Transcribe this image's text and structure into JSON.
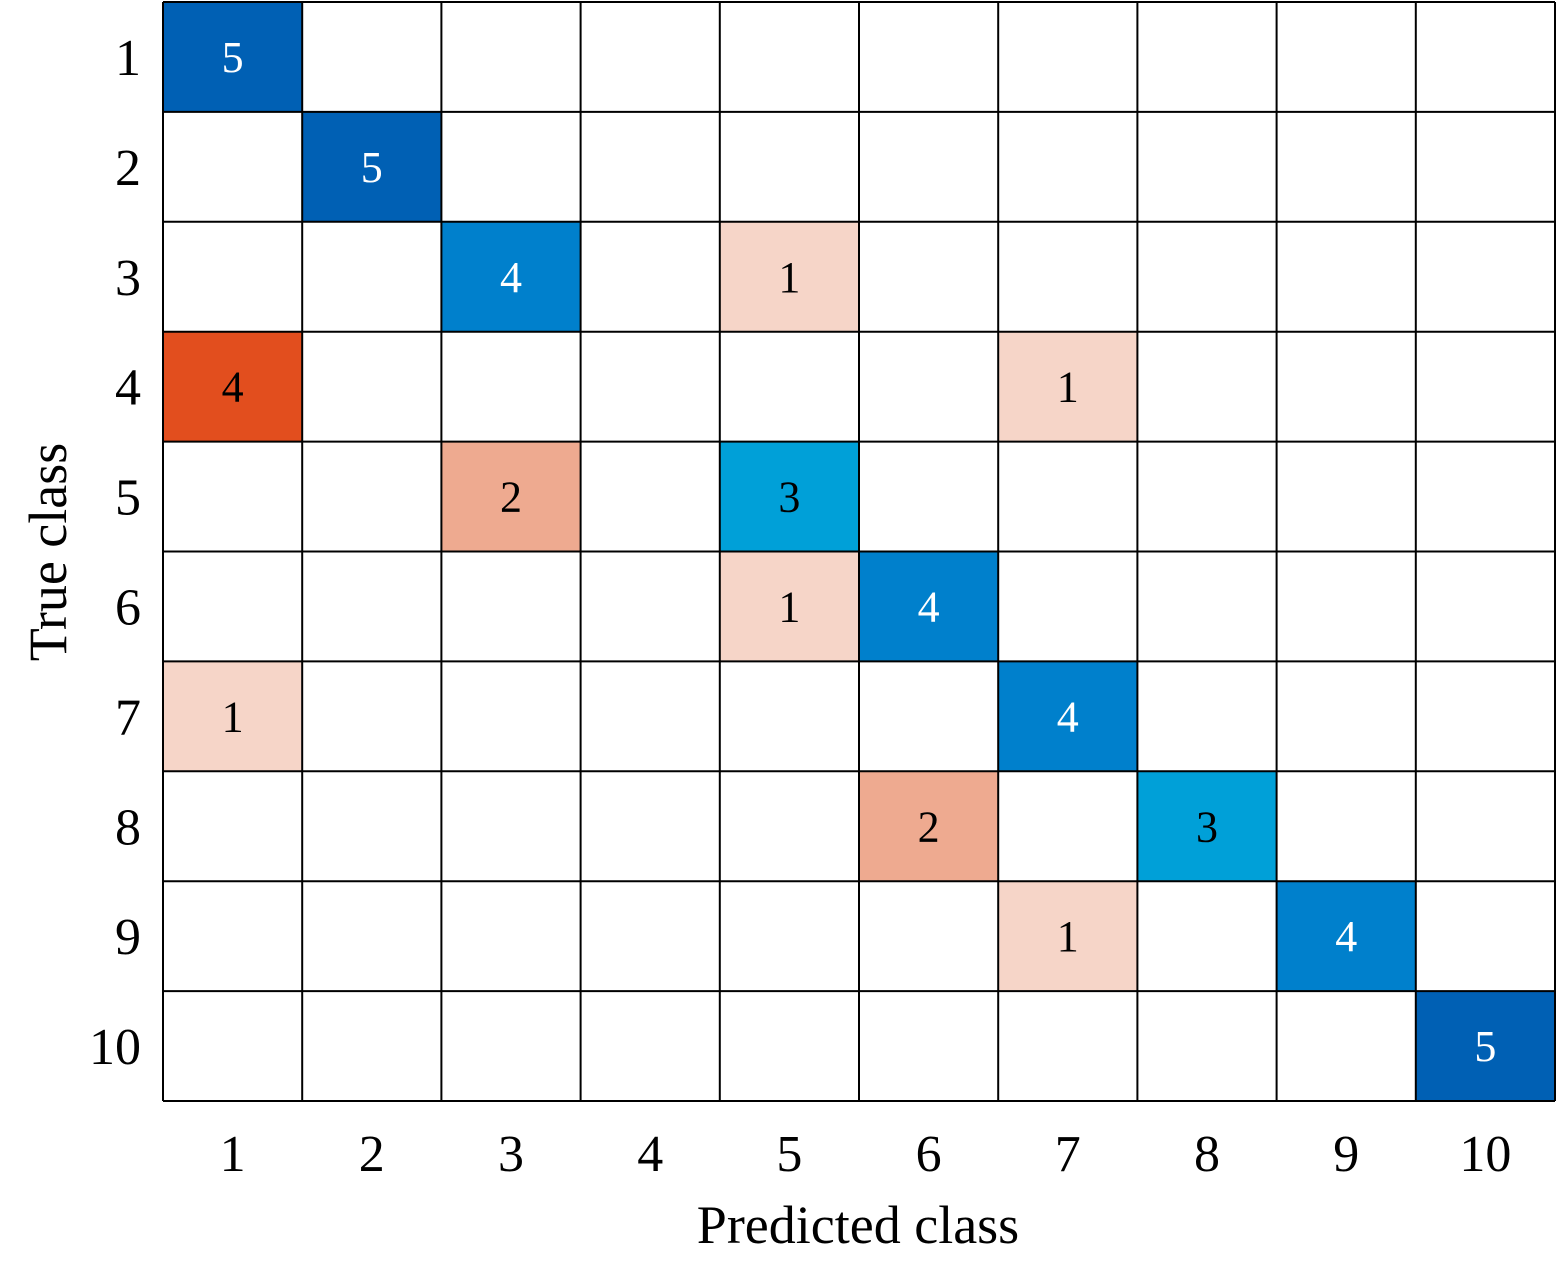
{
  "chart_data": {
    "type": "heatmap",
    "title": "",
    "xlabel": "Predicted class",
    "ylabel": "True class",
    "x_categories": [
      "1",
      "2",
      "3",
      "4",
      "5",
      "6",
      "7",
      "8",
      "9",
      "10"
    ],
    "y_categories": [
      "1",
      "2",
      "3",
      "4",
      "5",
      "6",
      "7",
      "8",
      "9",
      "10"
    ],
    "matrix": [
      [
        5,
        0,
        0,
        0,
        0,
        0,
        0,
        0,
        0,
        0
      ],
      [
        0,
        5,
        0,
        0,
        0,
        0,
        0,
        0,
        0,
        0
      ],
      [
        0,
        0,
        4,
        0,
        1,
        0,
        0,
        0,
        0,
        0
      ],
      [
        4,
        0,
        0,
        0,
        0,
        0,
        1,
        0,
        0,
        0
      ],
      [
        0,
        0,
        2,
        0,
        3,
        0,
        0,
        0,
        0,
        0
      ],
      [
        0,
        0,
        0,
        0,
        1,
        4,
        0,
        0,
        0,
        0
      ],
      [
        1,
        0,
        0,
        0,
        0,
        0,
        4,
        0,
        0,
        0
      ],
      [
        0,
        0,
        0,
        0,
        0,
        2,
        0,
        3,
        0,
        0
      ],
      [
        0,
        0,
        0,
        0,
        0,
        0,
        1,
        0,
        4,
        0
      ],
      [
        0,
        0,
        0,
        0,
        0,
        0,
        0,
        0,
        0,
        5
      ]
    ],
    "zero_cells_blank": true,
    "colors": {
      "correct": {
        "5": "#0060b4",
        "4": "#0080cc",
        "3": "#00a0d8"
      },
      "incorrect": {
        "4": "#e24e1e",
        "2": "#eeaa90",
        "1": "#f6d5c8"
      },
      "empty": "#ffffff",
      "grid": "#000000",
      "text_dark": "#000000",
      "text_light": "#ffffff"
    }
  }
}
